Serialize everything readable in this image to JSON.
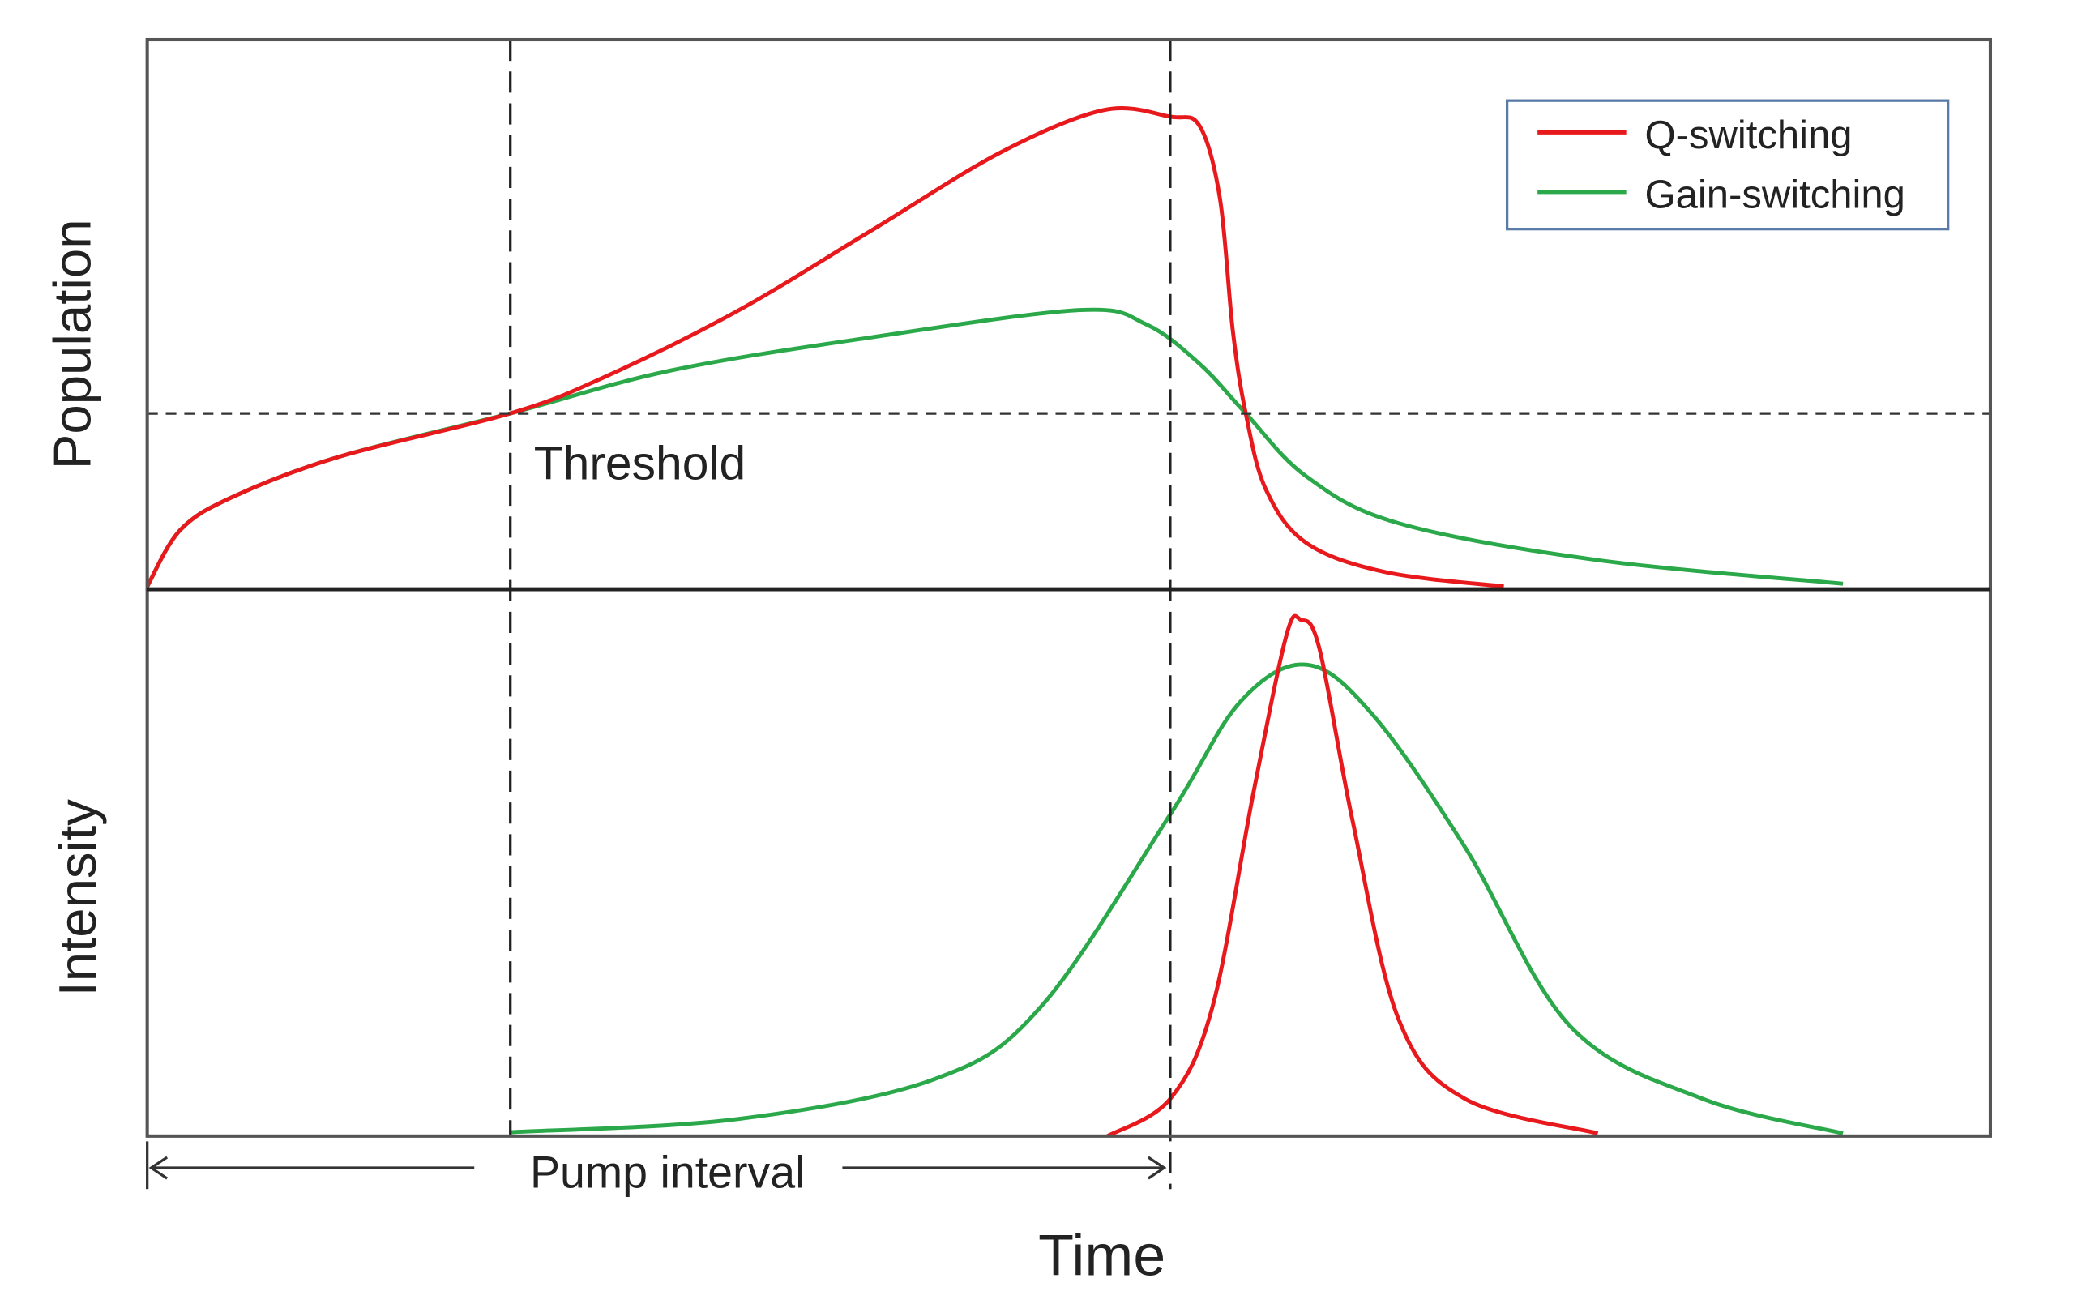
{
  "chart_data": [
    {
      "panel": "top",
      "type": "line",
      "ylabel": "Population",
      "xlim": [
        0,
        100
      ],
      "ylim": [
        0,
        100
      ],
      "grid": false,
      "legend_placement": "top-right",
      "legend": [
        "Q-switching",
        "Gain-switching"
      ],
      "threshold": {
        "label": "Threshold",
        "y": 32.0
      },
      "series": [
        {
          "name": "Q-switching",
          "color": "#e8191c",
          "x": [
            0,
            1.8,
            4.7,
            10.4,
            19.7,
            24.8,
            32.0,
            39.2,
            46.3,
            51.9,
            55.5,
            57.1,
            58.2,
            58.9,
            59.6,
            60.7,
            62.9,
            67.2,
            73.6
          ],
          "y": [
            0.5,
            10.8,
            16.9,
            24.1,
            32.0,
            38.6,
            50.6,
            65.1,
            79.5,
            87.2,
            86.0,
            84.3,
            71.1,
            47.0,
            32.0,
            18.1,
            8.4,
            3.1,
            0.5
          ]
        },
        {
          "name": "Gain-switching",
          "color": "#2aa84a",
          "x": [
            0,
            1.8,
            4.7,
            10.4,
            19.7,
            28.4,
            39.2,
            50.6,
            54.2,
            57.1,
            59.6,
            62.9,
            67.9,
            78.7,
            92.0
          ],
          "y": [
            0.5,
            10.8,
            16.9,
            24.1,
            32.0,
            39.8,
            45.8,
            50.8,
            48.2,
            41.0,
            32.0,
            20.5,
            12.0,
            5.3,
            1.0
          ]
        }
      ]
    },
    {
      "panel": "bottom",
      "type": "line",
      "xlabel": "Time",
      "ylabel": "Intensity",
      "xlim": [
        0,
        100
      ],
      "ylim": [
        0,
        100
      ],
      "grid": false,
      "series": [
        {
          "name": "Q-switching",
          "color": "#e8191c",
          "x": [
            52.1,
            55.5,
            57.8,
            60.0,
            61.8,
            62.6,
            63.6,
            65.4,
            67.9,
            71.5,
            78.7
          ],
          "y": [
            0,
            6.8,
            23.7,
            62.5,
            91.5,
            94.4,
            89.1,
            57.6,
            21.3,
            6.8,
            0.5
          ]
        },
        {
          "name": "Gain-switching",
          "color": "#2aa84a",
          "x": [
            19.7,
            32.0,
            42.7,
            48.5,
            55.5,
            59.3,
            62.9,
            66.5,
            71.5,
            77.2,
            84.4,
            92.0
          ],
          "y": [
            0.7,
            3.1,
            10.4,
            23.7,
            58.8,
            79.4,
            86.2,
            77.0,
            52.8,
            20.1,
            6.8,
            0.5
          ]
        }
      ]
    }
  ],
  "markers": {
    "vertical_lines_x": [
      19.7,
      55.5
    ]
  },
  "annotation": {
    "label": "Pump interval",
    "from": 0,
    "to": 55.5
  }
}
